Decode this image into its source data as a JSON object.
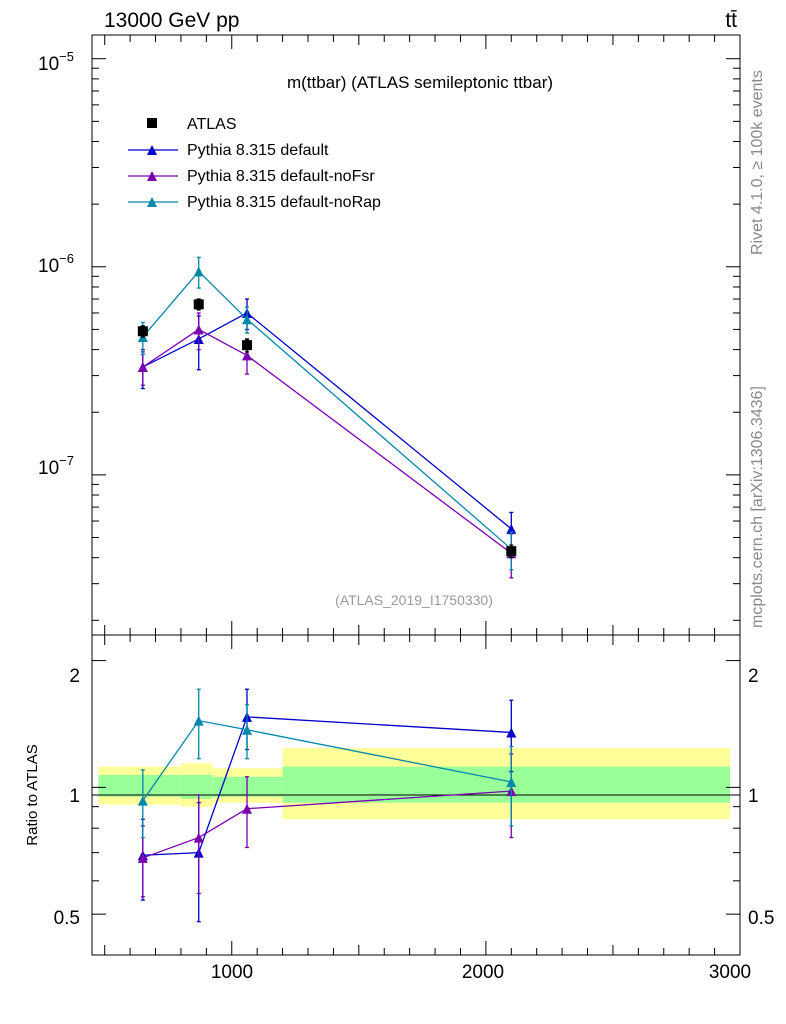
{
  "header": {
    "energy_label": "13000 GeV pp",
    "process_label": "tt̄"
  },
  "side_labels": {
    "rivet": "Rivet 4.1.0, ≥ 100k events",
    "source": "mcplots.cern.ch [arXiv:1306.3436]"
  },
  "chart_data": [
    {
      "type": "line",
      "panel": "main",
      "title": "m(ttbar) (ATLAS semileptonic ttbar)",
      "analysis_id": "(ATLAS_2019_I1750330)",
      "yscale": "log",
      "xlim": [
        450,
        3000
      ],
      "ylim": [
        1.7e-08,
        1.3e-05
      ],
      "y_tick_labels": [
        "10",
        "10",
        "10"
      ],
      "y_tick_exponents": [
        "−5",
        "−6",
        "−7"
      ],
      "legend_position": "top-left",
      "x": [
        650,
        870,
        1060,
        2100
      ],
      "series": [
        {
          "name": "ATLAS",
          "marker": "square",
          "color": "#000000",
          "values": [
            4.9e-07,
            6.6e-07,
            4.2e-07,
            4.3e-08
          ],
          "errors": [
            3e-08,
            4e-08,
            3e-08,
            3e-09
          ]
        },
        {
          "name": "Pythia 8.315 default",
          "marker": "triangle",
          "color": "#0000cc",
          "values": [
            3.3e-07,
            4.5e-07,
            6e-07,
            5.5e-08
          ],
          "errors": [
            7e-08,
            1.3e-07,
            1e-07,
            1.1e-08
          ]
        },
        {
          "name": "Pythia 8.315 default-noFsr",
          "marker": "triangle",
          "color": "#7a00b0",
          "values": [
            3.3e-07,
            5e-07,
            3.75e-07,
            4.2e-08
          ],
          "errors": [
            6e-08,
            1e-07,
            7e-08,
            1e-08
          ]
        },
        {
          "name": "Pythia 8.315 default-noRap",
          "marker": "triangle",
          "color": "#0088aa",
          "values": [
            4.6e-07,
            9.5e-07,
            5.6e-07,
            4.4e-08
          ],
          "errors": [
            8e-08,
            1.6e-07,
            8e-08,
            9e-09
          ]
        }
      ]
    },
    {
      "type": "line",
      "panel": "ratio",
      "ylabel": "Ratio to ATLAS",
      "yscale": "log",
      "xlim": [
        450,
        3000
      ],
      "ylim": [
        0.4,
        2.3
      ],
      "y_ticks": [
        0.5,
        1,
        2
      ],
      "y_tick_labels": [
        "0.5",
        "1",
        "2"
      ],
      "x_ticks": [
        1000,
        2000,
        3000
      ],
      "x_tick_labels": [
        "1000",
        "2000",
        "3000"
      ],
      "bands": [
        {
          "x0": 450,
          "x1": 800,
          "inner": [
            0.95,
            1.07
          ],
          "outer": [
            0.91,
            1.12
          ]
        },
        {
          "x0": 800,
          "x1": 925,
          "inner": [
            0.94,
            1.07
          ],
          "outer": [
            0.9,
            1.14
          ]
        },
        {
          "x0": 925,
          "x1": 1200,
          "inner": [
            0.95,
            1.06
          ],
          "outer": [
            0.92,
            1.11
          ]
        },
        {
          "x0": 1200,
          "x1": 3000,
          "inner": [
            0.92,
            1.12
          ],
          "outer": [
            0.84,
            1.24
          ]
        }
      ],
      "band_colors": {
        "inner": "#99ff99",
        "outer": "#ffff99"
      },
      "x": [
        650,
        870,
        1060,
        2100
      ],
      "series": [
        {
          "name": "Pythia 8.315 default",
          "color": "#0000cc",
          "values": [
            0.69,
            0.7,
            1.47,
            1.35
          ],
          "errors": [
            0.15,
            0.22,
            0.24,
            0.26
          ]
        },
        {
          "name": "Pythia 8.315 default-noFsr",
          "color": "#7a00b0",
          "values": [
            0.68,
            0.76,
            0.89,
            0.98
          ],
          "errors": [
            0.13,
            0.2,
            0.17,
            0.22
          ]
        },
        {
          "name": "Pythia 8.315 default-noRap",
          "color": "#0088aa",
          "values": [
            0.93,
            1.44,
            1.37,
            1.03
          ],
          "errors": [
            0.17,
            0.27,
            0.2,
            0.22
          ]
        }
      ]
    }
  ]
}
